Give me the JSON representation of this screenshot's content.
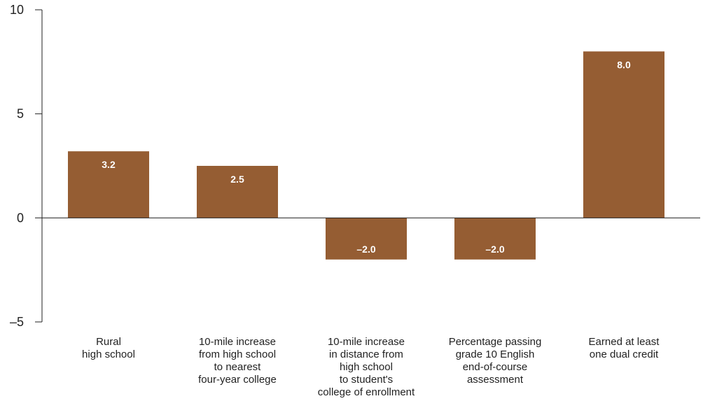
{
  "chart_data": {
    "type": "bar",
    "categories": [
      [
        "Rural",
        "high school"
      ],
      [
        "10-mile increase",
        "from high school",
        "to nearest",
        "four-year college"
      ],
      [
        "10-mile increase",
        "in distance from",
        "high school",
        "to student's",
        "college of enrollment"
      ],
      [
        "Percentage passing",
        "grade 10 English",
        "end-of-course",
        "assessment"
      ],
      [
        "Earned at least",
        "one dual credit"
      ]
    ],
    "values": [
      3.2,
      2.5,
      -2.0,
      -2.0,
      8.0
    ],
    "value_labels": [
      "3.2",
      "2.5",
      "–2.0",
      "–2.0",
      "8.0"
    ],
    "yticks": [
      10,
      5,
      0,
      -5
    ],
    "ytick_labels": [
      "10",
      "5",
      "0",
      "–5"
    ],
    "ylim": [
      -5,
      10
    ],
    "bar_color": "#955d33",
    "grid": false,
    "legend": "none"
  }
}
